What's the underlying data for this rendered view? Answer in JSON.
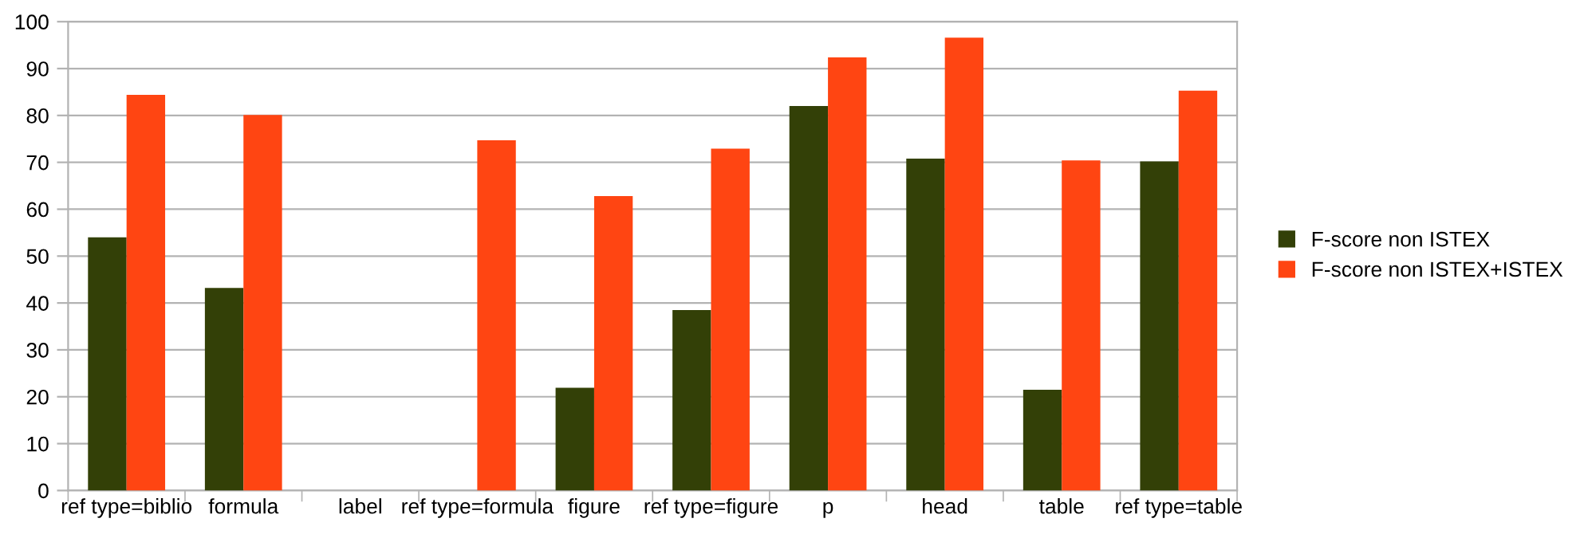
{
  "chart_data": {
    "type": "bar",
    "categories": [
      "ref type=biblio",
      "formula",
      "label",
      "ref type=formula",
      "figure",
      "ref type=figure",
      "p",
      "head",
      "table",
      "ref type=table"
    ],
    "series": [
      {
        "name": "F-score non ISTEX",
        "color": "#334007",
        "values": [
          54.0,
          43.2,
          null,
          null,
          21.9,
          38.5,
          82.0,
          70.8,
          21.5,
          70.2
        ]
      },
      {
        "name": "F-score non ISTEX+ISTEX",
        "color": "#ff4512",
        "values": [
          84.4,
          80.1,
          null,
          74.7,
          62.8,
          72.9,
          92.4,
          96.6,
          70.4,
          85.3
        ]
      }
    ],
    "ylim": [
      0,
      100
    ],
    "yticks": [
      0,
      10,
      20,
      30,
      40,
      50,
      60,
      70,
      80,
      90,
      100
    ],
    "grid": "y",
    "legend": "right"
  }
}
